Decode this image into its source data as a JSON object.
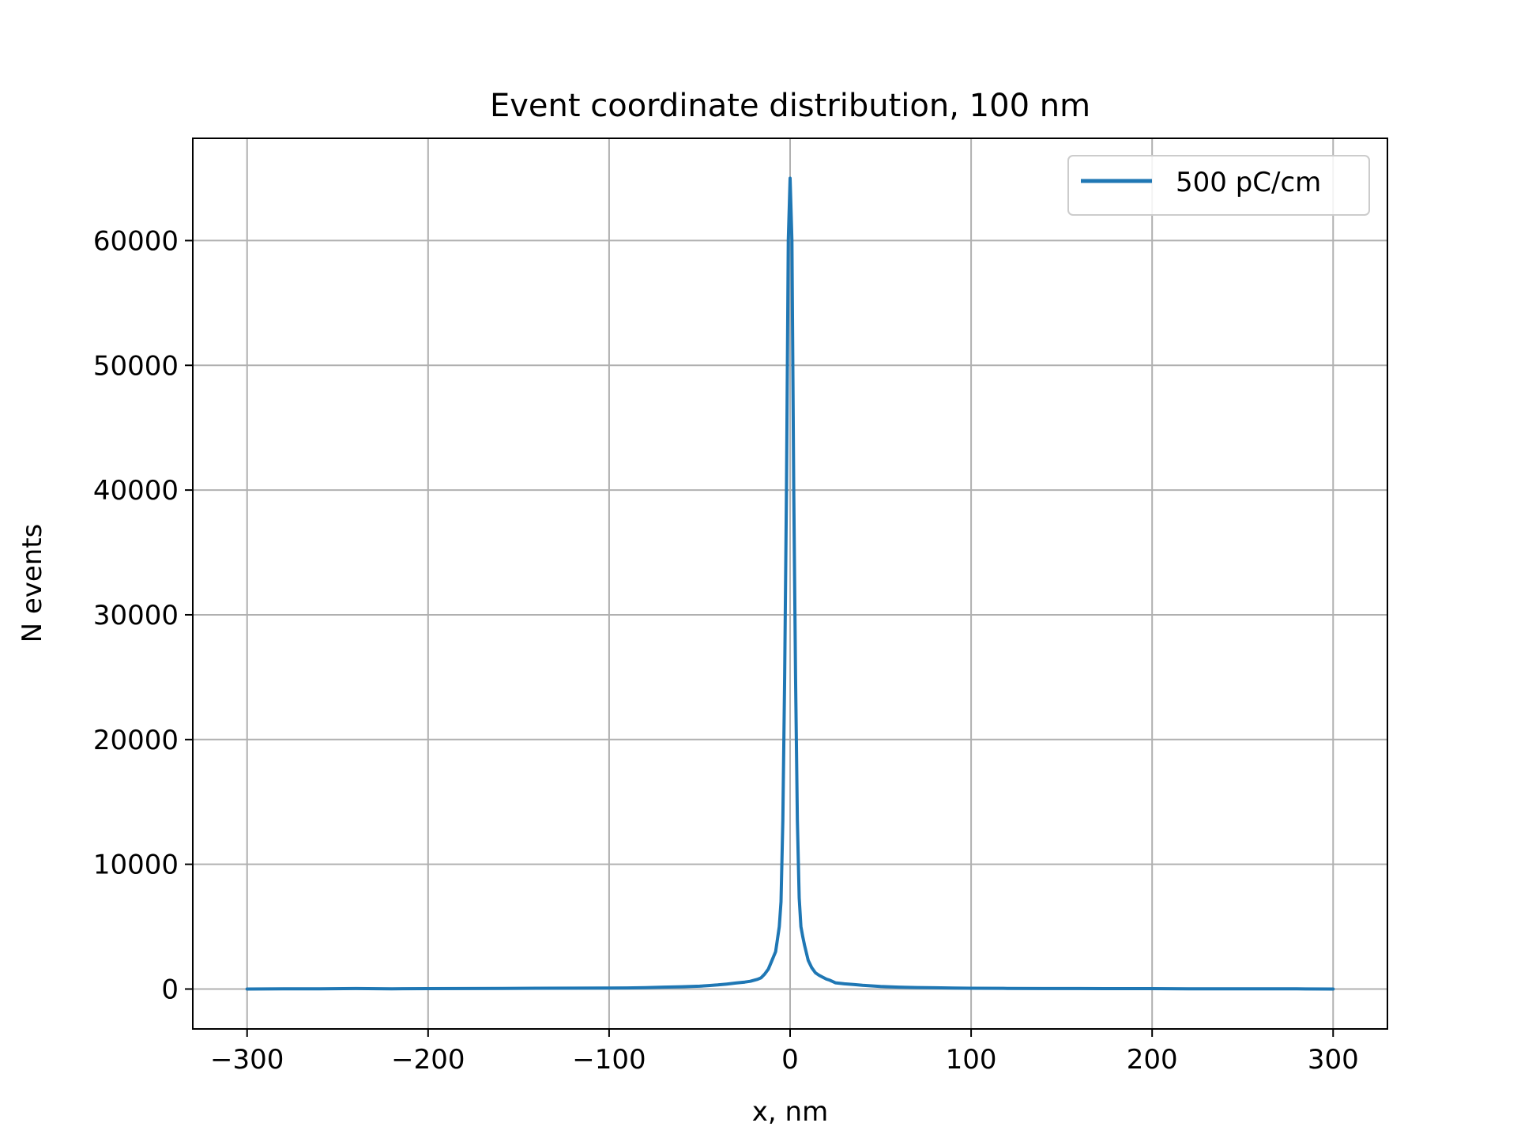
{
  "chart_data": {
    "type": "line",
    "title": "Event coordinate distribution, 100 nm",
    "xlabel": "x, nm",
    "ylabel": "N events",
    "xlim": [
      -330,
      330
    ],
    "ylim": [
      -3200,
      68200
    ],
    "xticks": [
      -300,
      -200,
      -100,
      0,
      100,
      200,
      300
    ],
    "xtick_labels": [
      "−300",
      "−200",
      "−100",
      "0",
      "100",
      "200",
      "300"
    ],
    "yticks": [
      0,
      10000,
      20000,
      30000,
      40000,
      50000,
      60000
    ],
    "ytick_labels": [
      "0",
      "10000",
      "20000",
      "30000",
      "40000",
      "50000",
      "60000"
    ],
    "grid": true,
    "legend": "top-right",
    "series": [
      {
        "name": "500 pC/cm",
        "color": "#1f77b4",
        "x": [
          -300,
          -280,
          -260,
          -240,
          -220,
          -200,
          -180,
          -160,
          -140,
          -120,
          -100,
          -90,
          -80,
          -70,
          -60,
          -50,
          -45,
          -40,
          -35,
          -30,
          -25,
          -22,
          -20,
          -18,
          -16,
          -14,
          -12,
          -10,
          -8,
          -7,
          -6,
          -5,
          -4,
          -3,
          -2,
          -1,
          0,
          1,
          2,
          3,
          4,
          5,
          6,
          7,
          8,
          10,
          12,
          14,
          16,
          18,
          20,
          22,
          25,
          30,
          35,
          40,
          45,
          50,
          60,
          70,
          80,
          90,
          100,
          120,
          140,
          160,
          180,
          200,
          220,
          240,
          260,
          280,
          300
        ],
        "y": [
          0,
          20,
          10,
          40,
          20,
          30,
          40,
          50,
          60,
          70,
          80,
          90,
          110,
          150,
          180,
          230,
          280,
          330,
          400,
          480,
          560,
          620,
          700,
          780,
          900,
          1200,
          1600,
          2300,
          3000,
          4000,
          5000,
          7000,
          13500,
          25000,
          40000,
          60000,
          65000,
          60000,
          40000,
          25000,
          13500,
          7300,
          5000,
          4200,
          3500,
          2300,
          1700,
          1300,
          1100,
          950,
          800,
          700,
          500,
          420,
          360,
          300,
          250,
          200,
          150,
          120,
          100,
          80,
          60,
          50,
          40,
          40,
          30,
          30,
          20,
          20,
          10,
          10,
          0
        ]
      }
    ]
  }
}
